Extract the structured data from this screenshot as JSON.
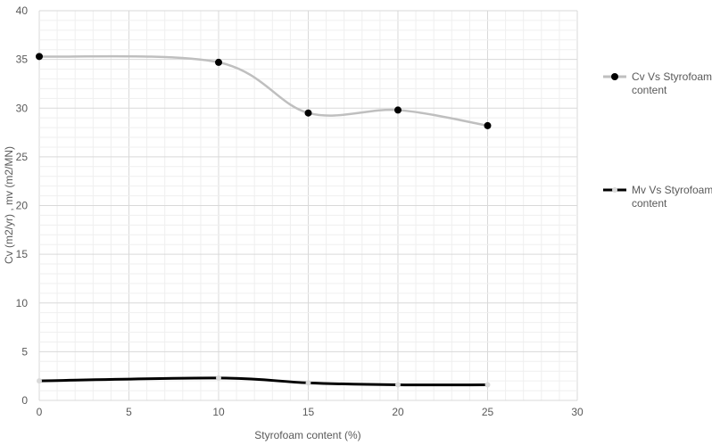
{
  "chart_data": {
    "type": "line",
    "title": "",
    "xlabel": "Styrofoam content (%)",
    "ylabel": "Cv (m2/yr) , mv (m2/MN)",
    "xlim": [
      0,
      30
    ],
    "ylim": [
      0,
      40
    ],
    "xticks": [
      0,
      5,
      10,
      15,
      20,
      25,
      30
    ],
    "yticks": [
      0,
      5,
      10,
      15,
      20,
      25,
      30,
      35,
      40
    ],
    "grid": true,
    "smooth": true,
    "legend_placement": "right",
    "series": [
      {
        "name": "Cv Vs Styrofoam content",
        "legend_lines": [
          "Cv Vs Styrofoam",
          "content"
        ],
        "x": [
          0,
          10,
          15,
          20,
          25
        ],
        "y": [
          35.3,
          34.7,
          29.5,
          29.8,
          28.2
        ],
        "line_color": "#bfbfbf",
        "marker_color": "#000000"
      },
      {
        "name": "Mv Vs Styrofoam content",
        "legend_lines": [
          "Mv Vs Styrofoam",
          "content"
        ],
        "x": [
          0,
          10,
          15,
          20,
          25
        ],
        "y": [
          2.0,
          2.3,
          1.8,
          1.6,
          1.6
        ],
        "line_color": "#000000",
        "marker_color": "#d9d9d9"
      }
    ]
  }
}
